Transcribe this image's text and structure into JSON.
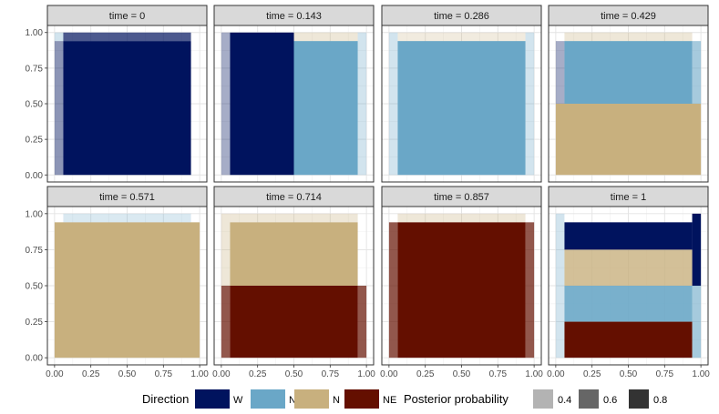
{
  "chart_data": {
    "type": "heatmap",
    "layout": "facet-grid",
    "facet_variable": "time",
    "facet_labels": [
      "time = 0",
      "time = 0.143",
      "time = 0.286",
      "time = 0.429",
      "time = 0.571",
      "time = 0.714",
      "time = 0.857",
      "time = 1"
    ],
    "xlim": [
      0,
      1
    ],
    "ylim": [
      0,
      1
    ],
    "x_ticks": [
      "0.00",
      "0.25",
      "0.50",
      "0.75",
      "1.00"
    ],
    "y_ticks": [
      "0.00",
      "0.25",
      "0.50",
      "0.75",
      "1.00"
    ],
    "grid": true,
    "legend_position": "bottom",
    "direction_legend": {
      "title": "Direction",
      "items": [
        {
          "label": "W",
          "color": "#00135e"
        },
        {
          "label": "NW",
          "color": "#6aa7c7"
        },
        {
          "label": "N",
          "color": "#c8b07e"
        },
        {
          "label": "NE",
          "color": "#640f00"
        }
      ]
    },
    "probability_legend": {
      "title": "Posterior probability",
      "items": [
        {
          "label": "0.4",
          "color": "#b3b3b3",
          "value": 0.4
        },
        {
          "label": "0.6",
          "color": "#666666",
          "value": 0.6
        },
        {
          "label": "0.8",
          "color": "#333333",
          "value": 0.8
        }
      ]
    },
    "panels": [
      {
        "time": 0,
        "regions": [
          {
            "x": [
              0.06,
              0.94
            ],
            "y": [
              0,
              0.94
            ],
            "direction": "W",
            "prob": 1.0
          },
          {
            "x": [
              0,
              0.06
            ],
            "y": [
              0,
              0.94
            ],
            "direction": "W",
            "prob": 0.45
          },
          {
            "x": [
              0.06,
              0.94
            ],
            "y": [
              0.94,
              1
            ],
            "direction": "W",
            "prob": 0.7
          },
          {
            "x": [
              0,
              0.06
            ],
            "y": [
              0.94,
              1
            ],
            "direction": "NW",
            "prob": 0.3
          }
        ]
      },
      {
        "time": 0.143,
        "regions": [
          {
            "x": [
              0.06,
              0.5
            ],
            "y": [
              0,
              1
            ],
            "direction": "W",
            "prob": 1.0
          },
          {
            "x": [
              0.5,
              0.94
            ],
            "y": [
              0,
              0.94
            ],
            "direction": "NW",
            "prob": 1.0
          },
          {
            "x": [
              0,
              0.06
            ],
            "y": [
              0,
              1
            ],
            "direction": "W",
            "prob": 0.35
          },
          {
            "x": [
              0.5,
              0.94
            ],
            "y": [
              0.94,
              1
            ],
            "direction": "N",
            "prob": 0.3
          },
          {
            "x": [
              0.94,
              1
            ],
            "y": [
              0,
              1
            ],
            "direction": "NW",
            "prob": 0.3
          }
        ]
      },
      {
        "time": 0.286,
        "regions": [
          {
            "x": [
              0.06,
              0.94
            ],
            "y": [
              0,
              0.94
            ],
            "direction": "NW",
            "prob": 1.0
          },
          {
            "x": [
              0,
              0.06
            ],
            "y": [
              0,
              1
            ],
            "direction": "NW",
            "prob": 0.3
          },
          {
            "x": [
              0.06,
              0.94
            ],
            "y": [
              0.94,
              1
            ],
            "direction": "N",
            "prob": 0.25
          },
          {
            "x": [
              0.94,
              1
            ],
            "y": [
              0,
              1
            ],
            "direction": "NW",
            "prob": 0.3
          }
        ]
      },
      {
        "time": 0.429,
        "regions": [
          {
            "x": [
              0,
              1
            ],
            "y": [
              0,
              0.5
            ],
            "direction": "N",
            "prob": 1.0
          },
          {
            "x": [
              0.06,
              0.94
            ],
            "y": [
              0.5,
              0.94
            ],
            "direction": "NW",
            "prob": 1.0
          },
          {
            "x": [
              0,
              0.06
            ],
            "y": [
              0.5,
              0.94
            ],
            "direction": "W",
            "prob": 0.35
          },
          {
            "x": [
              0.06,
              0.94
            ],
            "y": [
              0.94,
              1
            ],
            "direction": "N",
            "prob": 0.3
          },
          {
            "x": [
              0.94,
              1
            ],
            "y": [
              0.5,
              0.94
            ],
            "direction": "NW",
            "prob": 0.6
          }
        ]
      },
      {
        "time": 0.571,
        "regions": [
          {
            "x": [
              0,
              1
            ],
            "y": [
              0,
              0.94
            ],
            "direction": "N",
            "prob": 1.0
          },
          {
            "x": [
              0.06,
              0.94
            ],
            "y": [
              0.94,
              1
            ],
            "direction": "NW",
            "prob": 0.25
          }
        ]
      },
      {
        "time": 0.714,
        "regions": [
          {
            "x": [
              0.06,
              0.94
            ],
            "y": [
              0.5,
              0.94
            ],
            "direction": "N",
            "prob": 1.0
          },
          {
            "x": [
              0.06,
              0.94
            ],
            "y": [
              0,
              0.5
            ],
            "direction": "NE",
            "prob": 1.0
          },
          {
            "x": [
              0,
              0.06
            ],
            "y": [
              0.5,
              1
            ],
            "direction": "N",
            "prob": 0.3
          },
          {
            "x": [
              0,
              0.06
            ],
            "y": [
              0,
              0.5
            ],
            "direction": "NE",
            "prob": 0.7
          },
          {
            "x": [
              0.94,
              1
            ],
            "y": [
              0,
              0.5
            ],
            "direction": "NE",
            "prob": 0.7
          },
          {
            "x": [
              0.06,
              0.94
            ],
            "y": [
              0.94,
              1
            ],
            "direction": "N",
            "prob": 0.3
          }
        ]
      },
      {
        "time": 0.857,
        "regions": [
          {
            "x": [
              0.06,
              0.94
            ],
            "y": [
              0,
              0.94
            ],
            "direction": "NE",
            "prob": 1.0
          },
          {
            "x": [
              0,
              0.06
            ],
            "y": [
              0,
              0.94
            ],
            "direction": "NE",
            "prob": 0.7
          },
          {
            "x": [
              0.94,
              1
            ],
            "y": [
              0,
              0.94
            ],
            "direction": "NE",
            "prob": 0.7
          },
          {
            "x": [
              0.06,
              0.94
            ],
            "y": [
              0.94,
              1
            ],
            "direction": "N",
            "prob": 0.3
          }
        ]
      },
      {
        "time": 1,
        "regions": [
          {
            "x": [
              0.06,
              0.94
            ],
            "y": [
              0.75,
              0.94
            ],
            "direction": "W",
            "prob": 1.0
          },
          {
            "x": [
              0.94,
              1
            ],
            "y": [
              0.5,
              1
            ],
            "direction": "W",
            "prob": 1.0
          },
          {
            "x": [
              0.06,
              0.94
            ],
            "y": [
              0.5,
              0.75
            ],
            "direction": "N",
            "prob": 0.8
          },
          {
            "x": [
              0.06,
              0.94
            ],
            "y": [
              0.25,
              0.5
            ],
            "direction": "NW",
            "prob": 0.9
          },
          {
            "x": [
              0.06,
              0.94
            ],
            "y": [
              0,
              0.25
            ],
            "direction": "NE",
            "prob": 1.0
          },
          {
            "x": [
              0.94,
              1
            ],
            "y": [
              0,
              0.5
            ],
            "direction": "NW",
            "prob": 0.6
          },
          {
            "x": [
              0,
              0.06
            ],
            "y": [
              0,
              1
            ],
            "direction": "NW",
            "prob": 0.3
          }
        ]
      }
    ]
  }
}
